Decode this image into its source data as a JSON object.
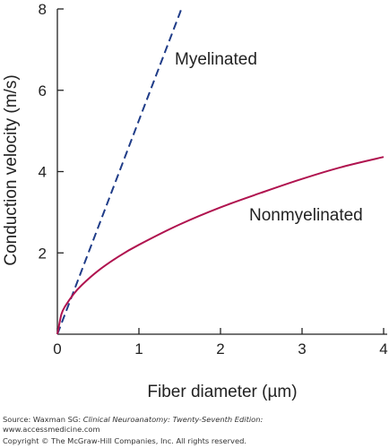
{
  "chart_data": {
    "type": "line",
    "xlabel": "Fiber diameter (µm)",
    "ylabel": "Conduction velocity (m/s)",
    "xlim": [
      0,
      4
    ],
    "ylim": [
      0,
      8
    ],
    "xticks": [
      "0",
      "1",
      "2",
      "3",
      "4"
    ],
    "yticks": [
      "2",
      "4",
      "6",
      "8"
    ],
    "series": [
      {
        "name": "Myelinated",
        "style": "dashed",
        "color": "#1f3c88",
        "x": [
          0,
          0.5,
          1.0,
          1.5,
          1.52
        ],
        "y": [
          0,
          2.63,
          5.26,
          7.89,
          8.0
        ]
      },
      {
        "name": "Nonmyelinated",
        "style": "solid",
        "color": "#b0134f",
        "x": [
          0,
          0.05,
          0.1,
          0.2,
          0.3,
          0.5,
          0.75,
          1.0,
          1.5,
          2.0,
          2.5,
          3.0,
          3.5,
          4.0
        ],
        "y": [
          0,
          0.49,
          0.7,
          0.99,
          1.21,
          1.56,
          1.91,
          2.2,
          2.7,
          3.12,
          3.48,
          3.82,
          4.12,
          4.36
        ]
      }
    ],
    "annotations": [
      "Myelinated",
      "Nonmyelinated"
    ]
  },
  "footer": {
    "source_prefix": "Source: Waxman SG: ",
    "source_title": "Clinical Neuroanatomy: Twenty-Seventh Edition:",
    "url": "www.accessmedicine.com",
    "copyright": "Copyright © The McGraw-Hill Companies, Inc. All rights reserved."
  }
}
